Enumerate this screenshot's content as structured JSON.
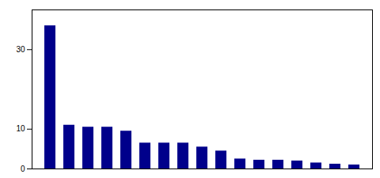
{
  "chart_data": {
    "type": "bar",
    "categories": [
      null,
      null,
      null,
      null,
      null,
      null,
      null,
      null,
      null,
      null,
      null,
      null,
      null,
      null,
      null,
      null,
      null
    ],
    "values": [
      36,
      11,
      10.5,
      10.5,
      9.5,
      6.5,
      6.5,
      6.5,
      5.5,
      4.5,
      2.5,
      2.2,
      2.2,
      2.0,
      1.5,
      1.2,
      1.0
    ],
    "color": "#00008B",
    "ylim": [
      0,
      40
    ],
    "yticks": [
      0,
      10,
      30
    ],
    "tick_labels": "y"
  }
}
